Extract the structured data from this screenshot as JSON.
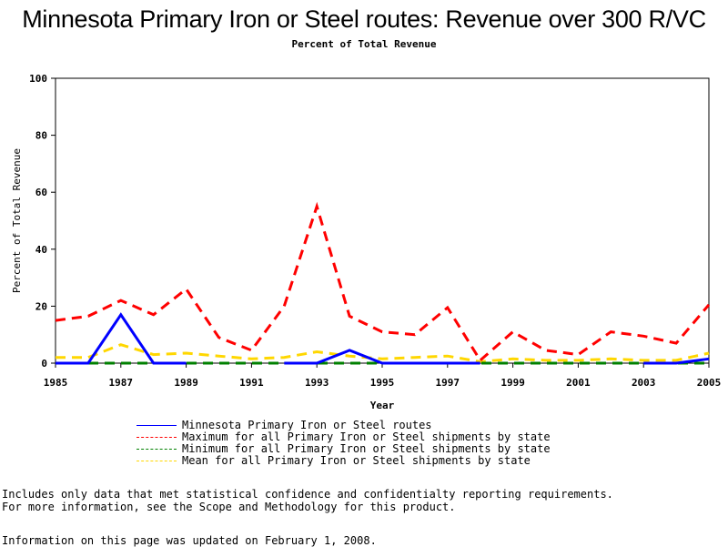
{
  "chart_data": {
    "type": "line",
    "title": "Minnesota Primary Iron or Steel routes: Revenue over 300 R/VC",
    "subtitle": "Percent of Total Revenue",
    "xlabel": "Year",
    "ylabel": "Percent of Total Revenue",
    "xlim": [
      1985,
      2005
    ],
    "ylim": [
      0,
      100
    ],
    "xticks": [
      "1985",
      "1987",
      "1989",
      "1991",
      "1993",
      "1995",
      "1997",
      "1999",
      "2001",
      "2003",
      "2005"
    ],
    "yticks": [
      "0",
      "20",
      "40",
      "60",
      "80",
      "100"
    ],
    "grid": false,
    "legend_position": "bottom",
    "x": [
      1985,
      1986,
      1987,
      1988,
      1989,
      1990,
      1991,
      1992,
      1993,
      1994,
      1995,
      1996,
      1997,
      1998,
      1999,
      2000,
      2001,
      2002,
      2003,
      2004,
      2005
    ],
    "series": [
      {
        "name": "Minnesota Primary Iron or Steel routes",
        "color": "#0000ff",
        "dash": "solid",
        "values": [
          0,
          0,
          17,
          0,
          0,
          null,
          null,
          0,
          0,
          4.5,
          0,
          0,
          0,
          0,
          null,
          null,
          null,
          null,
          0,
          0,
          1.5
        ]
      },
      {
        "name": "Maximum for all Primary Iron or Steel shipments by state",
        "color": "#ff0000",
        "dash": "dashed",
        "values": [
          15,
          16.5,
          22,
          17,
          26,
          9,
          4.5,
          20,
          55,
          16.5,
          11,
          10,
          19.5,
          1,
          11,
          4.5,
          3,
          11,
          9.5,
          7,
          20.5
        ]
      },
      {
        "name": "Minimum for all Primary Iron or Steel shipments by state",
        "color": "#008000",
        "dash": "dashed",
        "values": [
          0,
          0,
          0,
          0,
          0,
          0,
          0,
          0,
          0,
          0,
          0,
          0,
          0,
          0,
          0,
          0,
          0,
          0,
          0,
          0,
          0
        ]
      },
      {
        "name": "Mean for all Primary Iron or Steel shipments by state",
        "color": "#ffd700",
        "dash": "dashed",
        "values": [
          2,
          2,
          6.5,
          3,
          3.5,
          2.5,
          1.5,
          2,
          4,
          2.5,
          1.5,
          2,
          2.5,
          0.5,
          1.5,
          1,
          1,
          1.5,
          1,
          1,
          3.5
        ]
      }
    ]
  },
  "notes": [
    "Includes only data that met statistical confidence and confidentialty reporting requirements.",
    "For more information, see the Scope and Methodology for this product."
  ],
  "updated": "Information on this page was updated on February 1, 2008."
}
